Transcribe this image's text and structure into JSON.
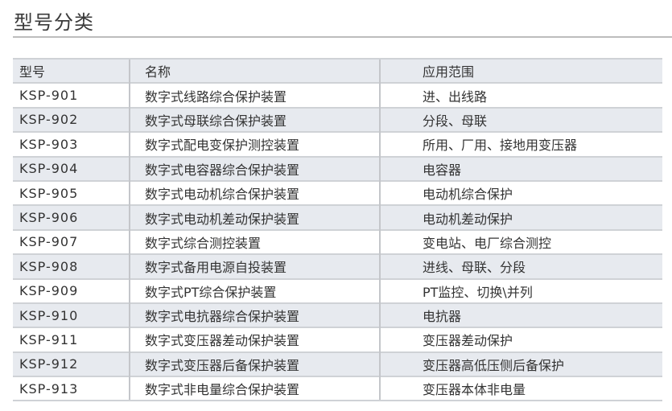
{
  "title": "型号分类",
  "table": {
    "headers": [
      "型号",
      "名称",
      "应用范围"
    ],
    "rows": [
      [
        "KSP-901",
        "数字式线路综合保护装置",
        "进、出线路"
      ],
      [
        "KSP-902",
        "数字式母联综合保护装置",
        "分段、母联"
      ],
      [
        "KSP-903",
        "数字式配电变保护测控装置",
        "所用、厂用、接地用变压器"
      ],
      [
        "KSP-904",
        "数字式电容器综合保护装置",
        "电容器"
      ],
      [
        "KSP-905",
        "数字式电动机综合保护装置",
        "电动机综合保护"
      ],
      [
        "KSP-906",
        "数字式电动机差动保护装置",
        "电动机差动保护"
      ],
      [
        "KSP-907",
        "数字式综合测控装置",
        "变电站、电厂综合测控"
      ],
      [
        "KSP-908",
        "数字式备用电源自投装置",
        "进线、母联、分段"
      ],
      [
        "KSP-909",
        "数字式PT综合保护装置",
        "PT监控、切换\\并列"
      ],
      [
        "KSP-910",
        "数字式电抗器综合保护装置",
        "电抗器"
      ],
      [
        "KSP-911",
        "数字式变压器差动保护装置",
        "变压器差动保护"
      ],
      [
        "KSP-912",
        "数字式变压器后备保护装置",
        "变压器高低压侧后备保护"
      ],
      [
        "KSP-913",
        "数字式非电量综合保护装置",
        "变压器本体非电量"
      ]
    ]
  },
  "colors": {
    "row_shade": "#e7eaef",
    "border": "#cfd2d6"
  }
}
